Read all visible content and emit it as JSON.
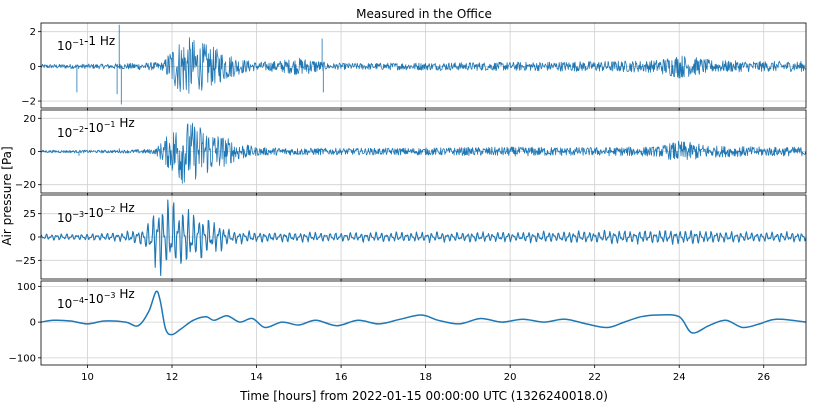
{
  "chart_data": {
    "type": "line",
    "title": "Measured in the Office",
    "xlabel": "Time [hours] from 2022-01-15 00:00:00 UTC (1326240018.0)",
    "ylabel": "Air pressure [Pa]",
    "xlim": [
      8.9,
      27.0
    ],
    "xticks": [
      10,
      12,
      14,
      16,
      18,
      20,
      22,
      24,
      26
    ],
    "grid": true,
    "line_color": "#1f77b4",
    "panels": [
      {
        "label": {
          "base1": "10",
          "exp1": "−1",
          "mid": "-1 Hz",
          "base2": "",
          "exp2": ""
        },
        "ylim": [
          -2.4,
          2.5
        ],
        "yticks": [
          -2,
          0,
          2
        ],
        "series": {
          "name": "0.1-1 Hz band",
          "kind": "noise",
          "envelope": [
            [
              8.9,
              0.12
            ],
            [
              10.6,
              0.15
            ],
            [
              11.8,
              0.25
            ],
            [
              12.0,
              1.2
            ],
            [
              12.3,
              1.8
            ],
            [
              12.7,
              1.4
            ],
            [
              13.2,
              0.9
            ],
            [
              13.6,
              0.45
            ],
            [
              14.0,
              0.25
            ],
            [
              14.4,
              0.3
            ],
            [
              15.0,
              0.5
            ],
            [
              15.4,
              0.4
            ],
            [
              15.7,
              0.18
            ],
            [
              18.0,
              0.22
            ],
            [
              20.0,
              0.25
            ],
            [
              22.0,
              0.3
            ],
            [
              23.4,
              0.35
            ],
            [
              24.0,
              0.7
            ],
            [
              24.8,
              0.35
            ],
            [
              26.0,
              0.3
            ],
            [
              27.0,
              0.3
            ]
          ],
          "spikes": [
            [
              9.75,
              -1.5
            ],
            [
              10.7,
              -1.6
            ],
            [
              10.75,
              2.4
            ],
            [
              10.8,
              -2.2
            ],
            [
              15.55,
              1.6
            ],
            [
              15.58,
              -1.5
            ]
          ]
        }
      },
      {
        "label": {
          "base1": "10",
          "exp1": "−2",
          "mid": "-",
          "base2": "10",
          "exp2": "−1",
          "unit": " Hz"
        },
        "ylim": [
          -25,
          25
        ],
        "yticks": [
          -20,
          0,
          20
        ],
        "series": {
          "name": "0.01-0.1 Hz band",
          "kind": "noise",
          "envelope": [
            [
              8.9,
              0.8
            ],
            [
              10.8,
              0.9
            ],
            [
              11.6,
              1.5
            ],
            [
              11.9,
              10
            ],
            [
              12.2,
              20
            ],
            [
              12.6,
              17
            ],
            [
              13.1,
              11
            ],
            [
              13.5,
              6
            ],
            [
              14.0,
              2.5
            ],
            [
              15.0,
              2.2
            ],
            [
              16.0,
              2.0
            ],
            [
              18.0,
              2.2
            ],
            [
              20.0,
              2.8
            ],
            [
              22.0,
              2.5
            ],
            [
              23.5,
              3.0
            ],
            [
              24.0,
              6.5
            ],
            [
              24.8,
              3.5
            ],
            [
              26.0,
              2.8
            ],
            [
              27.0,
              2.8
            ]
          ],
          "spikes": [
            [
              9.8,
              -2.5
            ],
            [
              10.75,
              2.0
            ]
          ]
        }
      },
      {
        "label": {
          "base1": "10",
          "exp1": "−3",
          "mid": "-",
          "base2": "10",
          "exp2": "−2",
          "unit": " Hz"
        },
        "ylim": [
          -45,
          45
        ],
        "yticks": [
          -25,
          0,
          25
        ],
        "series": {
          "name": "0.001-0.01 Hz band",
          "kind": "oscillation",
          "period_hours": 0.12,
          "envelope": [
            [
              8.9,
              3
            ],
            [
              10.8,
              4
            ],
            [
              11.3,
              10
            ],
            [
              11.6,
              28
            ],
            [
              11.8,
              38
            ],
            [
              12.2,
              30
            ],
            [
              12.6,
              25
            ],
            [
              13.0,
              16
            ],
            [
              13.4,
              7
            ],
            [
              14.0,
              5
            ],
            [
              16.0,
              4.5
            ],
            [
              20.0,
              5
            ],
            [
              24.0,
              7
            ],
            [
              26.0,
              5
            ],
            [
              27.0,
              5
            ]
          ]
        }
      },
      {
        "label": {
          "base1": "10",
          "exp1": "−4",
          "mid": "-",
          "base2": "10",
          "exp2": "−3",
          "unit": " Hz"
        },
        "ylim": [
          -120,
          115
        ],
        "yticks": [
          -100,
          0,
          100
        ],
        "series": {
          "name": "0.0001-0.001 Hz band",
          "kind": "smooth",
          "points": [
            [
              8.9,
              0
            ],
            [
              9.2,
              5
            ],
            [
              9.6,
              3
            ],
            [
              10.0,
              -5
            ],
            [
              10.4,
              3
            ],
            [
              10.9,
              0
            ],
            [
              11.2,
              -10
            ],
            [
              11.45,
              30
            ],
            [
              11.62,
              85
            ],
            [
              11.72,
              60
            ],
            [
              11.85,
              -20
            ],
            [
              12.0,
              -35
            ],
            [
              12.2,
              -20
            ],
            [
              12.5,
              5
            ],
            [
              12.8,
              15
            ],
            [
              13.0,
              5
            ],
            [
              13.3,
              18
            ],
            [
              13.6,
              0
            ],
            [
              13.9,
              10
            ],
            [
              14.2,
              -15
            ],
            [
              14.6,
              0
            ],
            [
              15.0,
              -8
            ],
            [
              15.4,
              5
            ],
            [
              15.9,
              -10
            ],
            [
              16.4,
              5
            ],
            [
              16.9,
              -5
            ],
            [
              17.4,
              8
            ],
            [
              17.9,
              20
            ],
            [
              18.3,
              5
            ],
            [
              18.8,
              -5
            ],
            [
              19.3,
              10
            ],
            [
              19.8,
              0
            ],
            [
              20.3,
              8
            ],
            [
              20.8,
              0
            ],
            [
              21.3,
              8
            ],
            [
              21.8,
              -5
            ],
            [
              22.3,
              -15
            ],
            [
              22.7,
              0
            ],
            [
              23.1,
              15
            ],
            [
              23.5,
              20
            ],
            [
              24.0,
              15
            ],
            [
              24.3,
              -30
            ],
            [
              24.7,
              -10
            ],
            [
              25.1,
              5
            ],
            [
              25.5,
              -15
            ],
            [
              25.9,
              -5
            ],
            [
              26.3,
              8
            ],
            [
              27.0,
              0
            ]
          ]
        }
      }
    ]
  }
}
